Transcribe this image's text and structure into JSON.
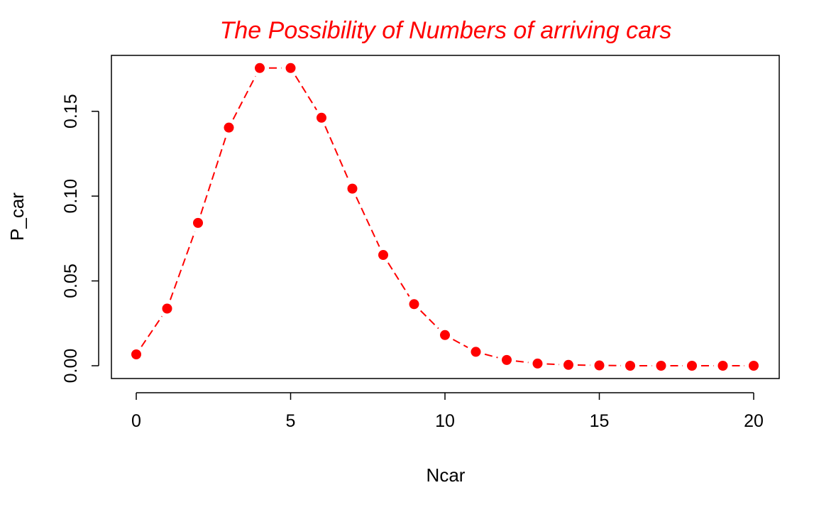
{
  "chart_data": {
    "type": "line",
    "title": "The Possibility of Numbers of arriving cars",
    "xlabel": "Ncar",
    "ylabel": "P_car",
    "xlim": [
      0,
      20
    ],
    "ylim": [
      0,
      0.175
    ],
    "x_ticks": [
      0,
      5,
      10,
      15,
      20
    ],
    "x_tick_labels": [
      "0",
      "5",
      "10",
      "15",
      "20"
    ],
    "y_ticks": [
      0,
      0.05,
      0.1,
      0.15
    ],
    "y_tick_labels": [
      "0.00",
      "0.05",
      "0.10",
      "0.15"
    ],
    "grid": false,
    "line_style": "dashed with points",
    "series": [
      {
        "color": "#ff0000",
        "x": [
          0,
          1,
          2,
          3,
          4,
          5,
          6,
          7,
          8,
          9,
          10,
          11,
          12,
          13,
          14,
          15,
          16,
          17,
          18,
          19,
          20
        ],
        "y": [
          0.0067,
          0.0337,
          0.0842,
          0.1404,
          0.1755,
          0.1755,
          0.1462,
          0.1044,
          0.0653,
          0.0363,
          0.0181,
          0.0082,
          0.0034,
          0.0013,
          0.0005,
          0.0002,
          0.0,
          0.0,
          0.0,
          0.0,
          0.0
        ]
      }
    ]
  },
  "colors": {
    "title": "#ff0000",
    "series": "#ff0000",
    "axis": "#000000"
  }
}
